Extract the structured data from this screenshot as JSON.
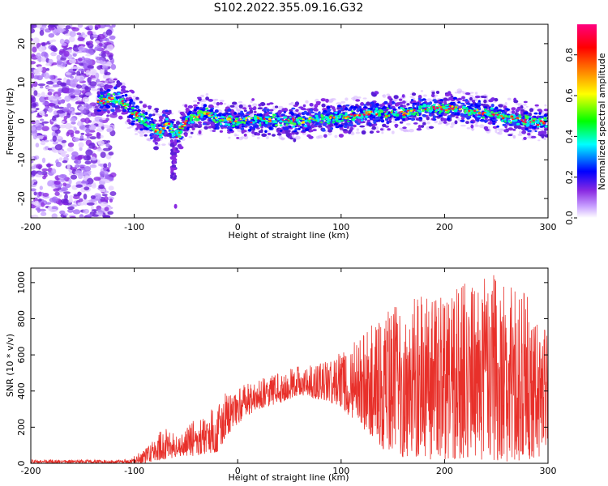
{
  "figure": {
    "title": "S102.2022.355.09.16.G32"
  },
  "chart_data": [
    {
      "type": "heatmap",
      "title": "S102.2022.355.09.16.G32",
      "xlabel": "Height of straight line (km)",
      "ylabel": "Frequency (Hz)",
      "xlim": [
        -200,
        300
      ],
      "ylim": [
        -25,
        25
      ],
      "x_ticks": [
        -200,
        -100,
        0,
        100,
        200,
        300
      ],
      "y_ticks": [
        -20,
        -10,
        0,
        10,
        20
      ],
      "colorbar": {
        "label": "Normalized spectral amplitude",
        "range": [
          0,
          0.95
        ],
        "ticks": [
          0.0,
          0.2,
          0.4,
          0.6,
          0.8
        ],
        "colors": [
          "#ffffff",
          "#c8a0ff",
          "#8a2be2",
          "#0000ff",
          "#00ffff",
          "#00ff00",
          "#ffff00",
          "#ff8000",
          "#ff0000",
          "#ff007f"
        ]
      },
      "ridge": {
        "x": [
          -135,
          -115,
          -105,
          -95,
          -85,
          -75,
          -68,
          -60,
          -50,
          -40,
          -30,
          -20,
          0,
          20,
          50,
          80,
          100,
          130,
          160,
          180,
          200,
          220,
          240,
          260,
          280,
          300
        ],
        "y": [
          5,
          6,
          3,
          1,
          -1,
          -3,
          0,
          -4,
          0,
          1,
          2,
          0.5,
          0,
          0.5,
          0,
          0.5,
          1,
          2,
          2,
          3,
          3.5,
          3,
          2,
          1,
          0,
          -0.5
        ]
      },
      "noise_region_x": [
        -200,
        -120
      ],
      "grid": false
    },
    {
      "type": "line",
      "xlabel": "Height of straight line (km)",
      "ylabel": "SNR (10 * v/v)",
      "xlim": [
        -200,
        300
      ],
      "ylim": [
        0,
        1080
      ],
      "x_ticks": [
        -200,
        -100,
        0,
        100,
        200,
        300
      ],
      "y_ticks": [
        0,
        200,
        400,
        600,
        800,
        1000
      ],
      "series_color": "#e8302a",
      "envelope": {
        "x": [
          -200,
          -110,
          -100,
          -90,
          -80,
          -70,
          -60,
          -50,
          -40,
          -30,
          -20,
          -10,
          0,
          20,
          40,
          60,
          80,
          100,
          120,
          140,
          160,
          180,
          200,
          220,
          240,
          260,
          280,
          300
        ],
        "low": [
          0,
          0,
          0,
          0,
          10,
          20,
          30,
          40,
          40,
          50,
          60,
          150,
          220,
          300,
          330,
          380,
          350,
          300,
          200,
          80,
          30,
          20,
          20,
          10,
          20,
          10,
          20,
          50
        ],
        "high": [
          20,
          20,
          40,
          80,
          140,
          220,
          150,
          200,
          250,
          280,
          350,
          400,
          420,
          470,
          500,
          540,
          560,
          620,
          720,
          820,
          900,
          950,
          970,
          1000,
          1080,
          1000,
          950,
          700
        ]
      },
      "grid": false
    }
  ]
}
